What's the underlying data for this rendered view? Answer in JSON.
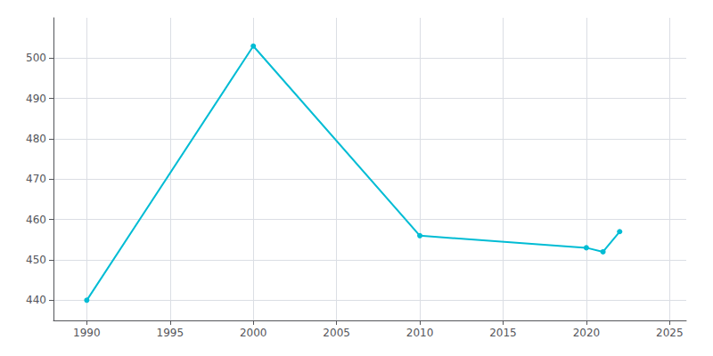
{
  "chart_data": {
    "type": "line",
    "x": [
      1990,
      2000,
      2010,
      2020,
      2021,
      2022
    ],
    "values": [
      440,
      503,
      456,
      453,
      452,
      457
    ],
    "color": "#00BCD4",
    "marker": "circle",
    "xlim": [
      1988,
      2026
    ],
    "ylim": [
      435,
      510
    ],
    "xticks": [
      1990,
      1995,
      2000,
      2005,
      2010,
      2015,
      2020,
      2025
    ],
    "yticks": [
      440,
      450,
      460,
      470,
      480,
      490,
      500
    ],
    "grid": true
  }
}
